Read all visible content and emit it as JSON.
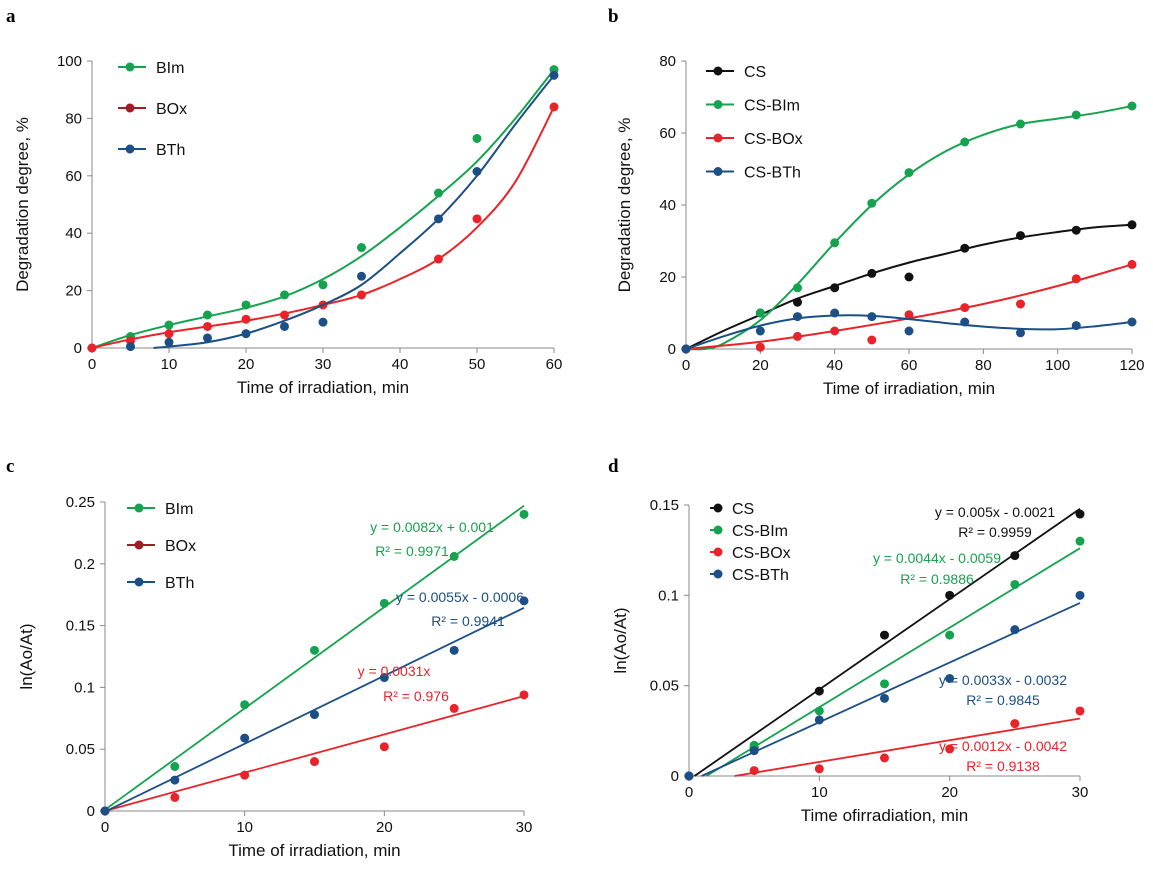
{
  "colors": {
    "BIm": "#16a34f",
    "BOx": "#e8232a",
    "BTh": "#1b4f86",
    "BOx_legend": "#a11d24",
    "CS": "#111111"
  },
  "chart_data": [
    {
      "panel": "a",
      "type": "scatter",
      "xlabel": "Time of irradiation, min",
      "ylabel": "Degradation degree, %",
      "xlim": [
        0,
        60
      ],
      "ylim": [
        0,
        100
      ],
      "xticks": [
        "0",
        "10",
        "20",
        "30",
        "40",
        "50",
        "60"
      ],
      "yticks": [
        "0",
        "20",
        "40",
        "60",
        "80",
        "100"
      ],
      "legend_position": "top-left",
      "fit": "smooth",
      "series": [
        {
          "name": "BIm",
          "color": "#16a34f",
          "legend_color": "#16a34f",
          "x": [
            0,
            5,
            10,
            15,
            20,
            25,
            30,
            35,
            45,
            50,
            60
          ],
          "y": [
            0,
            4,
            8,
            11.5,
            15,
            18.5,
            22,
            35,
            54,
            73,
            97
          ],
          "fit_x": [
            0,
            5,
            10,
            15,
            20,
            25,
            30,
            35,
            40,
            45,
            50,
            55,
            60
          ],
          "fit_y": [
            0,
            4.5,
            8,
            11,
            14,
            18,
            24,
            32,
            42,
            53,
            65,
            80,
            97
          ]
        },
        {
          "name": "BOx",
          "color": "#e8232a",
          "legend_color": "#a11d24",
          "x": [
            0,
            5,
            10,
            15,
            20,
            25,
            30,
            35,
            45,
            50,
            60
          ],
          "y": [
            0,
            2.5,
            5,
            7.5,
            10,
            11.5,
            15,
            18.5,
            31,
            45,
            84
          ],
          "fit_x": [
            0,
            5,
            10,
            15,
            20,
            25,
            30,
            35,
            40,
            45,
            50,
            55,
            60
          ],
          "fit_y": [
            0,
            3,
            5.5,
            7.5,
            9.5,
            12,
            15,
            18.5,
            24,
            31,
            42,
            58,
            84
          ]
        },
        {
          "name": "BTh",
          "color": "#1b4f86",
          "legend_color": "#1b4f86",
          "x": [
            5,
            10,
            15,
            20,
            25,
            30,
            35,
            45,
            50,
            60
          ],
          "y": [
            0.5,
            2,
            3.5,
            5,
            7.5,
            9,
            25,
            45,
            61.5,
            95
          ],
          "fit_x": [
            8,
            10,
            15,
            20,
            25,
            30,
            35,
            40,
            45,
            50,
            55,
            60
          ],
          "fit_y": [
            0,
            0.5,
            2,
            5,
            9.5,
            15,
            22,
            33,
            45,
            60,
            78,
            95
          ]
        }
      ]
    },
    {
      "panel": "b",
      "type": "scatter",
      "xlabel": "Time of irradiation, min",
      "ylabel": "Degradation degree, %",
      "xlim": [
        0,
        120
      ],
      "ylim": [
        0,
        80
      ],
      "xticks": [
        "0",
        "20",
        "40",
        "60",
        "80",
        "100",
        "120"
      ],
      "yticks": [
        "0",
        "20",
        "40",
        "60",
        "80"
      ],
      "legend_position": "top-left",
      "fit": "smooth",
      "series": [
        {
          "name": "CS",
          "color": "#111111",
          "legend_color": "#111111",
          "x": [
            0,
            20,
            30,
            40,
            50,
            60,
            75,
            90,
            105,
            120
          ],
          "y": [
            0,
            10,
            13,
            17,
            21,
            20,
            28,
            31.5,
            33,
            34.5
          ],
          "fit_x": [
            0,
            10,
            20,
            30,
            40,
            50,
            60,
            70,
            80,
            90,
            100,
            110,
            120
          ],
          "fit_y": [
            0,
            5,
            9.5,
            14,
            17.5,
            21,
            24,
            26.5,
            29,
            31,
            32.5,
            33.8,
            34.5
          ]
        },
        {
          "name": "CS-BIm",
          "color": "#16a34f",
          "legend_color": "#16a34f",
          "x": [
            0,
            20,
            30,
            40,
            50,
            60,
            75,
            90,
            105,
            120
          ],
          "y": [
            0,
            10,
            17,
            29.5,
            40.5,
            49,
            57.5,
            62.5,
            65,
            67.5
          ],
          "fit_x": [
            0,
            5,
            10,
            20,
            30,
            40,
            50,
            60,
            70,
            80,
            90,
            100,
            110,
            120
          ],
          "fit_y": [
            0,
            0,
            1.5,
            8,
            18,
            29.5,
            40,
            48.5,
            55,
            59.5,
            62.5,
            64,
            65.5,
            67.5
          ]
        },
        {
          "name": "CS-BOx",
          "color": "#e8232a",
          "legend_color": "#e8232a",
          "x": [
            0,
            20,
            30,
            40,
            50,
            60,
            75,
            90,
            105,
            120
          ],
          "y": [
            0,
            0.5,
            3.5,
            5,
            2.5,
            9.5,
            11.5,
            12.5,
            19.5,
            23.5
          ],
          "fit_x": [
            0,
            20,
            40,
            60,
            80,
            100,
            120
          ],
          "fit_y": [
            0,
            2,
            5,
            8.5,
            12.5,
            17.5,
            23.5
          ]
        },
        {
          "name": "CS-BTh",
          "color": "#1b4f86",
          "legend_color": "#1b4f86",
          "x": [
            0,
            20,
            30,
            40,
            50,
            60,
            75,
            90,
            105,
            120
          ],
          "y": [
            0,
            5,
            9,
            10,
            9,
            5,
            7.5,
            4.5,
            6.5,
            7.5
          ],
          "fit_x": [
            0,
            10,
            20,
            30,
            40,
            50,
            60,
            70,
            80,
            90,
            100,
            110,
            120
          ],
          "fit_y": [
            0,
            3.5,
            6.5,
            8.5,
            9.3,
            9.2,
            8.3,
            7.2,
            6.2,
            5.6,
            5.5,
            6.3,
            7.5
          ]
        }
      ]
    },
    {
      "panel": "c",
      "type": "scatter",
      "xlabel": "Time of irradiation, min",
      "ylabel": "ln(Ao/At)",
      "xlim": [
        0,
        30
      ],
      "ylim": [
        0,
        0.25
      ],
      "xticks": [
        "0",
        "10",
        "20",
        "30"
      ],
      "yticks": [
        "0",
        "0.05",
        "0.1",
        "0.15",
        "0.2",
        "0.25"
      ],
      "legend_position": "top-left",
      "fit": "linear",
      "series": [
        {
          "name": "BIm",
          "color": "#16a34f",
          "legend_color": "#16a34f",
          "x": [
            0,
            5,
            10,
            15,
            20,
            25,
            30
          ],
          "y": [
            0,
            0.036,
            0.086,
            0.13,
            0.168,
            0.206,
            0.24
          ],
          "equation": "y = 0.0082x + 0.001",
          "r2": "R² = 0.9971",
          "slope": 0.0082,
          "intercept": 0.001,
          "fit_range": [
            0,
            30
          ]
        },
        {
          "name": "BOx",
          "color": "#e8232a",
          "legend_color": "#a11d24",
          "x": [
            0,
            5,
            10,
            15,
            20,
            25,
            30
          ],
          "y": [
            0,
            0.011,
            0.029,
            0.04,
            0.052,
            0.083,
            0.094
          ],
          "equation": "y = 0.0031x",
          "r2": "R² = 0.976",
          "slope": 0.0031,
          "intercept": 0,
          "fit_range": [
            0,
            30
          ]
        },
        {
          "name": "BTh",
          "color": "#1b4f86",
          "legend_color": "#1b4f86",
          "x": [
            0,
            5,
            10,
            15,
            20,
            25,
            30
          ],
          "y": [
            0,
            0.025,
            0.059,
            0.078,
            0.108,
            0.13,
            0.17
          ],
          "equation": "y = 0.0055x - 0.0006",
          "r2": "R² = 0.9941",
          "slope": 0.0055,
          "intercept": -0.0006,
          "fit_range": [
            0,
            30
          ]
        }
      ]
    },
    {
      "panel": "d",
      "type": "scatter",
      "xlabel": "Time ofirradiation, min",
      "ylabel": "ln(Ao/At)",
      "xlim": [
        0,
        30
      ],
      "ylim": [
        0,
        0.15
      ],
      "xticks": [
        "0",
        "10",
        "20",
        "30"
      ],
      "yticks": [
        "0",
        "0.05",
        "0.1",
        "0.15"
      ],
      "legend_position": "top-left",
      "fit": "linear",
      "series": [
        {
          "name": "CS",
          "color": "#111111",
          "legend_color": "#111111",
          "x": [
            0,
            5,
            10,
            15,
            20,
            25,
            30
          ],
          "y": [
            0,
            0.016,
            0.047,
            0.078,
            0.1,
            0.122,
            0.145
          ],
          "equation": "y = 0.005x - 0.0021",
          "r2": "R² = 0.9959",
          "slope": 0.005,
          "intercept": -0.0021,
          "fit_range": [
            0.42,
            30
          ]
        },
        {
          "name": "CS-BIm",
          "color": "#16a34f",
          "legend_color": "#16a34f",
          "x": [
            0,
            5,
            10,
            15,
            20,
            25,
            30
          ],
          "y": [
            0,
            0.017,
            0.036,
            0.051,
            0.078,
            0.106,
            0.13
          ],
          "equation": "y = 0.0044x - 0.0059",
          "r2": "R² = 0.9886",
          "slope": 0.0044,
          "intercept": -0.0059,
          "fit_range": [
            1.34,
            30
          ]
        },
        {
          "name": "CS-BOx",
          "color": "#e8232a",
          "legend_color": "#e8232a",
          "x": [
            0,
            5,
            10,
            15,
            20,
            25,
            30
          ],
          "y": [
            0,
            0.003,
            0.004,
            0.01,
            0.015,
            0.029,
            0.036
          ],
          "equation": "y = 0.0012x - 0.0042",
          "r2": "R² = 0.9138",
          "slope": 0.0012,
          "intercept": -0.0042,
          "fit_range": [
            3.5,
            30
          ]
        },
        {
          "name": "CS-BTh",
          "color": "#1b4f86",
          "legend_color": "#1b4f86",
          "x": [
            0,
            5,
            10,
            15,
            20,
            25,
            30
          ],
          "y": [
            0,
            0.014,
            0.031,
            0.043,
            0.054,
            0.081,
            0.1
          ],
          "equation": "y = 0.0033x - 0.0032",
          "r2": "R² = 0.9845",
          "slope": 0.0033,
          "intercept": -0.0032,
          "fit_range": [
            0.97,
            30
          ]
        }
      ]
    }
  ]
}
